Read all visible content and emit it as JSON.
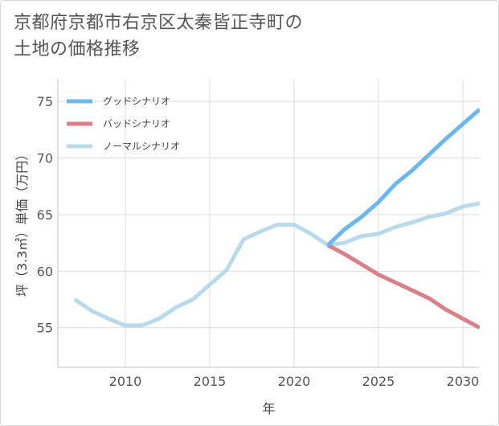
{
  "title_lines": [
    "京都府京都市右京区太秦皆正寺町の",
    "土地の価格推移"
  ],
  "colors": {
    "good": "#6cb8ee",
    "bad": "#d9818b",
    "normal": "#b9dbe9",
    "grid": "#dcdcdc",
    "axis": "#bfbfbf"
  },
  "chart_data": {
    "type": "line",
    "xlabel": "年",
    "ylabel": "坪（3.3㎡）単価（万円）",
    "xlim": [
      2006,
      2031
    ],
    "ylim": [
      51.5,
      77
    ],
    "xticks": [
      2010,
      2015,
      2020,
      2025,
      2030
    ],
    "yticks": [
      55,
      60,
      65,
      70,
      75
    ],
    "grid": true,
    "legend_position": "top-left",
    "series": [
      {
        "name": "グッドシナリオ",
        "color_key": "good",
        "x": [
          2022,
          2023,
          2024,
          2025,
          2026,
          2027,
          2028,
          2029,
          2030,
          2031
        ],
        "y": [
          62.3,
          63.7,
          64.8,
          66.1,
          67.7,
          68.9,
          70.3,
          71.7,
          73.0,
          74.3
        ]
      },
      {
        "name": "バッドシナリオ",
        "color_key": "bad",
        "x": [
          2022,
          2023,
          2024,
          2025,
          2026,
          2027,
          2028,
          2029,
          2030,
          2031
        ],
        "y": [
          62.3,
          61.5,
          60.6,
          59.7,
          59.0,
          58.3,
          57.6,
          56.6,
          55.8,
          55.0
        ]
      },
      {
        "name": "ノーマルシナリオ",
        "color_key": "normal",
        "x": [
          2007,
          2008,
          2009,
          2010,
          2011,
          2012,
          2013,
          2014,
          2015,
          2016,
          2017,
          2018,
          2019,
          2020,
          2021,
          2022,
          2023,
          2024,
          2025,
          2026,
          2027,
          2028,
          2029,
          2030,
          2031
        ],
        "y": [
          57.5,
          56.5,
          55.8,
          55.2,
          55.2,
          55.8,
          56.8,
          57.5,
          58.8,
          60.1,
          62.8,
          63.5,
          64.1,
          64.1,
          63.3,
          62.3,
          62.5,
          63.1,
          63.3,
          63.9,
          64.3,
          64.8,
          65.1,
          65.7,
          66.0
        ]
      }
    ]
  }
}
